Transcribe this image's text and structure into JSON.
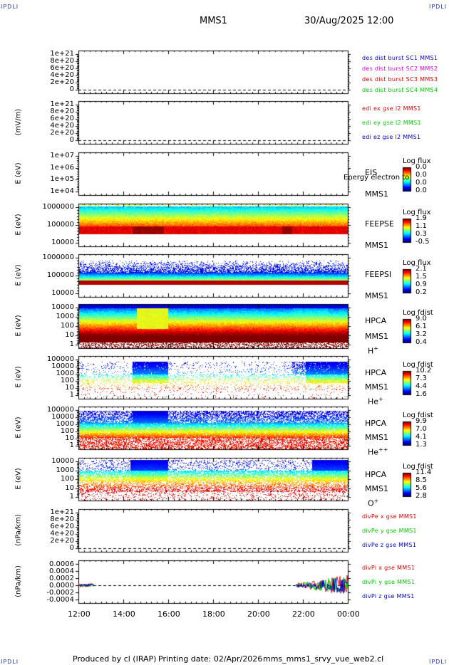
{
  "header": {
    "corner_label": "IPDLI",
    "spacecraft": "MMS1",
    "datetime": "30/Aug/2025 12:00"
  },
  "footer": {
    "producer": "Produced by cl (IRAP)",
    "printing_date": "Printing date: 02/Apr/2026",
    "filename": "mms_mms1_srvy_vue_web2.cl"
  },
  "colors": {
    "red": "#dd0000",
    "magenta": "#dd00dd",
    "green": "#00cc00",
    "blue": "#0000cc"
  },
  "chart_data": {
    "type": "stacked-timeseries",
    "x_ticks": [
      "12:00",
      "14:00",
      "16:00",
      "18:00",
      "20:00",
      "22:00",
      "00:00"
    ],
    "x_range_hours": [
      12,
      24
    ],
    "panels": [
      {
        "id": "fpi-dist",
        "type": "line",
        "ylabel": "",
        "ticks": [
          "1e+21",
          "8e+20",
          "6e+20",
          "4e+20",
          "2e+20",
          "0"
        ],
        "legend": [
          {
            "text": "des dist burst SC1 MMS1",
            "color": "#0000cc"
          },
          {
            "text": "des dist burst SC2 MMS2",
            "color": "#dd00dd"
          },
          {
            "text": "des dist burst SC3 MMS3",
            "color": "#dd0000"
          },
          {
            "text": "des dist burst SC4 MMS4",
            "color": "#00cc00"
          }
        ]
      },
      {
        "id": "edi",
        "type": "line",
        "ylabel": "(mV/m)",
        "ticks": [
          "1e+21",
          "8e+20",
          "6e+20",
          "4e+20",
          "2e+20",
          "0"
        ],
        "legend": [
          {
            "text": "edi ex gse l2 MMS1",
            "color": "#dd0000"
          },
          {
            "text": "edi ey gse l2 MMS1",
            "color": "#00cc00"
          },
          {
            "text": "edi ez gse l2 MMS1",
            "color": "#0000cc"
          }
        ]
      },
      {
        "id": "eis",
        "type": "heatmap",
        "ylabel": "E (eV)",
        "ticks": [
          "1e+07",
          "1e+06",
          "1e+05",
          "1e+04"
        ],
        "labels": [
          "EIS",
          "MMS1"
        ],
        "overlay": "Energy electron to",
        "cbar_title": "Log flux",
        "cbar_ticks": [
          "0.0",
          "0.0",
          "0.0",
          "0.0"
        ]
      },
      {
        "id": "feeps-e",
        "type": "heatmap",
        "ylabel": "E (eV)",
        "ticks": [
          "1000000",
          "100000",
          "10000"
        ],
        "labels": [
          "FEEPSE",
          "MMS1"
        ],
        "cbar_title": "Log flux",
        "cbar_ticks": [
          "1.9",
          "1.1",
          "0.3",
          "-0.5"
        ]
      },
      {
        "id": "feeps-i",
        "type": "heatmap",
        "ylabel": "E (eV)",
        "ticks": [
          "1000000",
          "100000",
          "10000"
        ],
        "labels": [
          "FEEPSI",
          "MMS1"
        ],
        "cbar_title": "Log flux",
        "cbar_ticks": [
          "2.1",
          "1.5",
          "0.9",
          "0.2"
        ]
      },
      {
        "id": "hpca-h",
        "type": "heatmap",
        "ylabel": "E (eV)",
        "ticks": [
          "10000",
          "1000",
          "100",
          "10",
          "1"
        ],
        "labels": [
          "HPCA",
          "MMS1"
        ],
        "species": "H",
        "species_sup": "+",
        "cbar_title": "Log fdist",
        "cbar_ticks": [
          "9.0",
          "6.1",
          "3.2",
          "0.4"
        ]
      },
      {
        "id": "hpca-he",
        "type": "heatmap",
        "ylabel": "E (eV)",
        "ticks": [
          "100000",
          "10000",
          "1000",
          "100",
          "10",
          "1"
        ],
        "labels": [
          "HPCA",
          "MMS1"
        ],
        "species": "He",
        "species_sup": "+",
        "cbar_title": "Log fdist",
        "cbar_ticks": [
          "10.2",
          "7.3",
          "4.4",
          "1.6"
        ]
      },
      {
        "id": "hpca-he2",
        "type": "heatmap",
        "ylabel": "E (eV)",
        "ticks": [
          "100000",
          "10000",
          "1000",
          "100",
          "10",
          "1"
        ],
        "labels": [
          "HPCA",
          "MMS1"
        ],
        "species": "He",
        "species_sup": "++",
        "cbar_title": "Log fdist",
        "cbar_ticks": [
          "9.9",
          "7.0",
          "4.1",
          "1.3"
        ]
      },
      {
        "id": "hpca-o",
        "type": "heatmap",
        "ylabel": "E (eV)",
        "ticks": [
          "10000",
          "1000",
          "100",
          "10",
          "1"
        ],
        "labels": [
          "HPCA",
          "MMS1"
        ],
        "species": "O",
        "species_sup": "+",
        "cbar_title": "Log fdist",
        "cbar_ticks": [
          "11.4",
          "8.5",
          "5.6",
          "2.8"
        ]
      },
      {
        "id": "divpe",
        "type": "line",
        "ylabel": "(nPa/km)",
        "ticks": [
          "1e+21",
          "8e+20",
          "6e+20",
          "4e+20",
          "2e+20",
          "0"
        ],
        "legend": [
          {
            "text": "divPe x gse MMS1",
            "color": "#dd0000"
          },
          {
            "text": "divPe y gse MMS1",
            "color": "#00cc00"
          },
          {
            "text": "divPe z gse MMS1",
            "color": "#0000cc"
          }
        ]
      },
      {
        "id": "divpi",
        "type": "line",
        "ylabel": "(nPa/km)",
        "ticks": [
          "0.0006",
          "0.0004",
          "0.0002",
          "0.0000",
          "-0.0002",
          "-0.0004"
        ],
        "tick_values": [
          0.0006,
          0.0004,
          0.0002,
          0.0,
          -0.0002,
          -0.0004
        ],
        "ylim": [
          -0.0005,
          0.0007
        ],
        "data_segments_hours": [
          [
            12.0,
            12.7
          ],
          [
            21.7,
            24.0
          ]
        ],
        "legend": [
          {
            "text": "divPi x gse MMS1",
            "color": "#dd0000"
          },
          {
            "text": "divPi y gse MMS1",
            "color": "#00cc00"
          },
          {
            "text": "divPi z gse MMS1",
            "color": "#0000cc"
          }
        ]
      }
    ]
  }
}
